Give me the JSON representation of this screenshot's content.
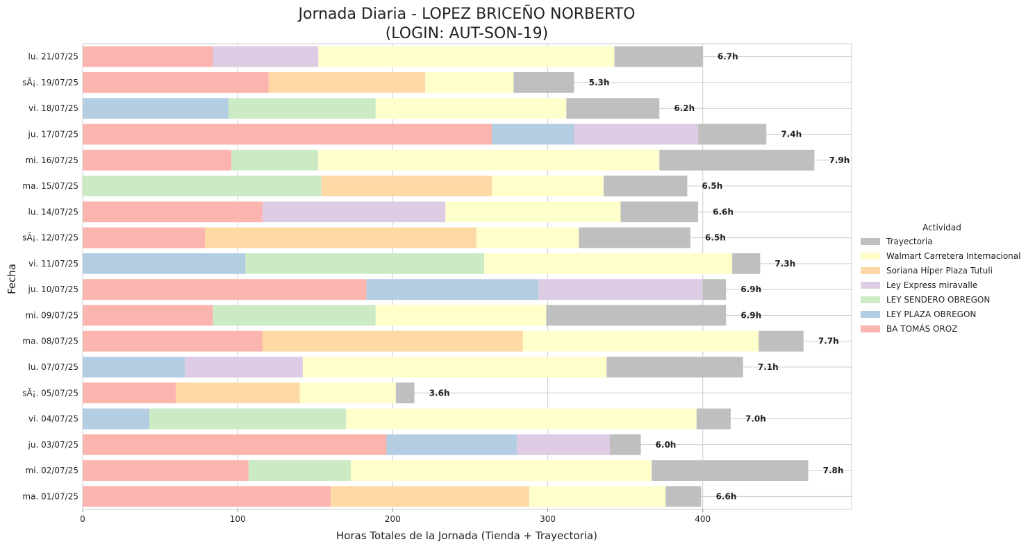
{
  "chart_data": {
    "type": "bar",
    "orientation": "horizontal",
    "stacked": true,
    "title_line1": "Jornada Diaria - LOPEZ BRICEÑO NORBERTO",
    "title_line2": "(LOGIN: AUT-SON-19)",
    "xlabel": "Horas Totales de la Jornada (Tienda + Trayectoria)",
    "ylabel": "Fecha",
    "xlim": [
      0,
      496
    ],
    "xticks": [
      0,
      100,
      200,
      300,
      400
    ],
    "grid": true,
    "legend_position": "center-right",
    "legend_title": "Actividad",
    "categories": [
      "ma. 01/07/25",
      "mi. 02/07/25",
      "ju. 03/07/25",
      "vi. 04/07/25",
      "sÃ¡. 05/07/25",
      "lu. 07/07/25",
      "ma. 08/07/25",
      "mi. 09/07/25",
      "ju. 10/07/25",
      "vi. 11/07/25",
      "sÃ¡. 12/07/25",
      "lu. 14/07/25",
      "ma. 15/07/25",
      "mi. 16/07/25",
      "ju. 17/07/25",
      "vi. 18/07/25",
      "sÃ¡. 19/07/25",
      "lu. 21/07/25"
    ],
    "series": [
      {
        "name": "BA TOMÁS OROZ",
        "color": "#fbb4ae",
        "values": [
          160,
          107,
          196,
          0,
          60,
          0,
          116,
          84,
          183,
          0,
          79,
          116,
          0,
          96,
          264,
          0,
          120,
          84
        ]
      },
      {
        "name": "LEY PLAZA OBREGON",
        "color": "#b3cde3",
        "values": [
          0,
          0,
          84,
          43,
          0,
          66,
          0,
          0,
          111,
          105,
          0,
          0,
          0,
          0,
          53,
          94,
          0,
          0
        ]
      },
      {
        "name": "LEY SENDERO OBREGON",
        "color": "#ccebc5",
        "values": [
          0,
          66,
          0,
          127,
          0,
          0,
          0,
          105,
          0,
          154,
          0,
          0,
          154,
          56,
          0,
          95,
          0,
          0
        ]
      },
      {
        "name": "Ley Express miravalle",
        "color": "#decbe4",
        "values": [
          0,
          0,
          60,
          0,
          0,
          76,
          0,
          0,
          106,
          0,
          0,
          118,
          0,
          0,
          80,
          0,
          0,
          68
        ]
      },
      {
        "name": "Soriana Híper Plaza Tutuli",
        "color": "#fed9a6",
        "values": [
          128,
          0,
          0,
          0,
          80,
          0,
          168,
          0,
          0,
          0,
          175,
          0,
          110,
          0,
          0,
          0,
          101,
          0
        ]
      },
      {
        "name": "Walmart Carretera Internacional",
        "color": "#ffffcc",
        "values": [
          88,
          194,
          0,
          226,
          62,
          196,
          152,
          110,
          0,
          160,
          66,
          113,
          72,
          220,
          0,
          123,
          57,
          191
        ]
      },
      {
        "name": "Trayectoria",
        "color": "#bfbfbf",
        "values": [
          23,
          101,
          20,
          22,
          12,
          88,
          29,
          116,
          15,
          18,
          72,
          50,
          54,
          100,
          44,
          60,
          39,
          57
        ]
      }
    ],
    "total_labels": [
      "6.6h",
      "7.8h",
      "6.0h",
      "7.0h",
      "3.6h",
      "7.1h",
      "7.7h",
      "6.9h",
      "6.9h",
      "7.3h",
      "6.5h",
      "6.6h",
      "6.5h",
      "7.9h",
      "7.4h",
      "6.2h",
      "5.3h",
      "6.7h"
    ]
  }
}
